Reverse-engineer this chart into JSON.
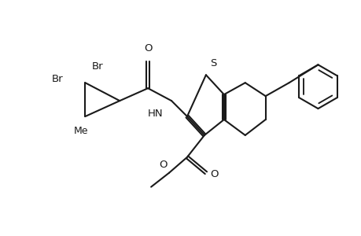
{
  "background_color": "#ffffff",
  "line_color": "#1a1a1a",
  "line_width": 1.5,
  "font_size": 9.5,
  "figsize": [
    4.6,
    3.0
  ],
  "dpi": 100,
  "xlim": [
    0,
    4.6
  ],
  "ylim": [
    0,
    3.0
  ]
}
